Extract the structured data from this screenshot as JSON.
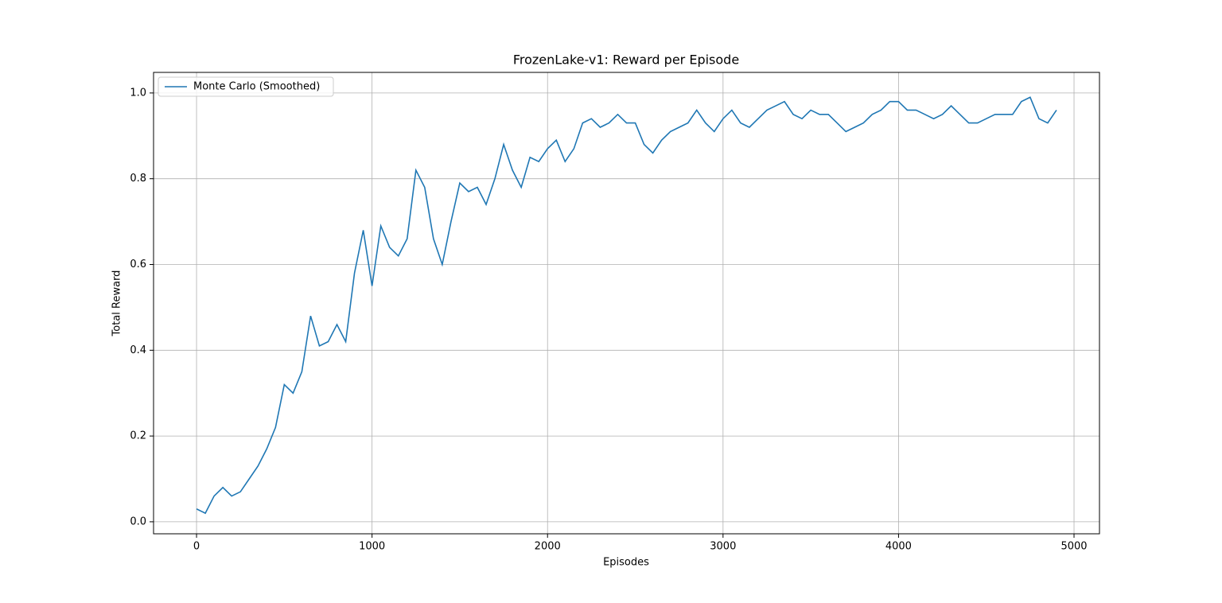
{
  "chart_data": {
    "type": "line",
    "title": "FrozenLake-v1: Reward per Episode",
    "x_label": "Episodes",
    "y_label": "Total Reward",
    "x": [
      0,
      50,
      100,
      150,
      200,
      250,
      300,
      350,
      400,
      450,
      500,
      550,
      600,
      650,
      700,
      750,
      800,
      850,
      900,
      950,
      1000,
      1050,
      1100,
      1150,
      1200,
      1250,
      1300,
      1350,
      1400,
      1450,
      1500,
      1550,
      1600,
      1650,
      1700,
      1750,
      1800,
      1850,
      1900,
      1950,
      2000,
      2050,
      2100,
      2150,
      2200,
      2250,
      2300,
      2350,
      2400,
      2450,
      2500,
      2550,
      2600,
      2650,
      2700,
      2750,
      2800,
      2850,
      2900,
      2950,
      3000,
      3050,
      3100,
      3150,
      3200,
      3250,
      3300,
      3350,
      3400,
      3450,
      3500,
      3550,
      3600,
      3650,
      3700,
      3750,
      3800,
      3850,
      3900,
      3950,
      4000,
      4050,
      4100,
      4150,
      4200,
      4250,
      4300,
      4350,
      4400,
      4450,
      4500,
      4550,
      4600,
      4650,
      4700,
      4750,
      4800,
      4850,
      4900
    ],
    "series": [
      {
        "name": "Monte Carlo (Smoothed)",
        "color": "#1f77b4",
        "values": [
          0.03,
          0.02,
          0.06,
          0.08,
          0.06,
          0.07,
          0.1,
          0.13,
          0.17,
          0.22,
          0.32,
          0.3,
          0.35,
          0.48,
          0.41,
          0.42,
          0.46,
          0.42,
          0.58,
          0.68,
          0.55,
          0.69,
          0.64,
          0.62,
          0.66,
          0.82,
          0.78,
          0.66,
          0.6,
          0.7,
          0.79,
          0.77,
          0.78,
          0.74,
          0.8,
          0.88,
          0.82,
          0.78,
          0.85,
          0.84,
          0.87,
          0.89,
          0.84,
          0.87,
          0.93,
          0.94,
          0.92,
          0.93,
          0.95,
          0.93,
          0.93,
          0.88,
          0.86,
          0.89,
          0.91,
          0.92,
          0.93,
          0.96,
          0.93,
          0.91,
          0.94,
          0.96,
          0.93,
          0.92,
          0.94,
          0.96,
          0.97,
          0.98,
          0.95,
          0.94,
          0.96,
          0.95,
          0.95,
          0.93,
          0.91,
          0.92,
          0.93,
          0.95,
          0.96,
          0.98,
          0.98,
          0.96,
          0.96,
          0.95,
          0.94,
          0.95,
          0.97,
          0.95,
          0.93,
          0.93,
          0.94,
          0.95,
          0.95,
          0.95,
          0.98,
          0.99,
          0.94,
          0.93,
          0.96
        ]
      }
    ],
    "xlim": [
      -245,
      5145
    ],
    "ylim": [
      -0.028,
      1.048
    ],
    "xticks": [
      0,
      1000,
      2000,
      3000,
      4000,
      5000
    ],
    "yticks": [
      {
        "value": 0,
        "label": "0.0"
      },
      {
        "value": 0.2,
        "label": "0.2"
      },
      {
        "value": 0.4,
        "label": "0.4"
      },
      {
        "value": 0.6,
        "label": "0.6"
      },
      {
        "value": 0.8,
        "label": "0.8"
      },
      {
        "value": 1,
        "label": "1.0"
      }
    ],
    "grid": true,
    "legend": "upper left"
  }
}
